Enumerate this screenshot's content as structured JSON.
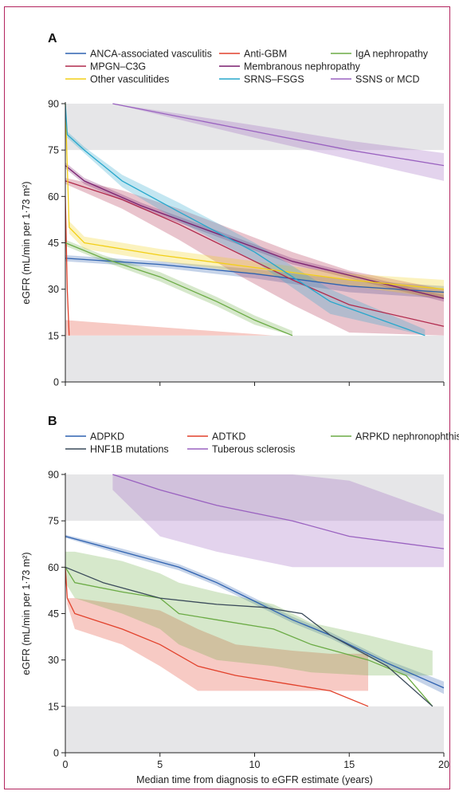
{
  "chart_data": [
    {
      "panel": "A",
      "type": "line",
      "ylabel": "eGFR (mL/min per 1·73 m²)",
      "xlim": [
        0,
        20
      ],
      "ylim": [
        0,
        90
      ],
      "xticks": [
        0,
        5,
        10,
        15,
        20
      ],
      "yticks": [
        0,
        15,
        30,
        45,
        60,
        75,
        90
      ],
      "shaded_bands": [
        [
          0,
          15
        ],
        [
          15,
          30
        ],
        [
          75,
          90
        ]
      ],
      "legend_rows": [
        [
          "ANCA-associated vasculitis",
          "Anti-GBM",
          "IgA nephropathy"
        ],
        [
          "MPGN–C3G",
          "Membranous nephropathy"
        ],
        [
          "Other vasculitides",
          "SRNS–FSGS",
          "SSNS or MCD"
        ]
      ],
      "series": [
        {
          "name": "ANCA-associated vasculitis",
          "color": "#2f62b0",
          "points": [
            [
              0,
              40
            ],
            [
              5,
              38
            ],
            [
              10,
              35
            ],
            [
              15,
              31
            ],
            [
              20,
              29
            ]
          ],
          "upper": [
            41,
            39,
            36.5,
            33,
            31
          ],
          "lower": [
            39,
            37,
            33.5,
            29,
            27
          ]
        },
        {
          "name": "Anti-GBM",
          "color": "#e2412b",
          "points": [
            [
              0,
              60
            ],
            [
              0.1,
              30
            ],
            [
              0.2,
              15
            ]
          ],
          "band_x": [
            0,
            11
          ],
          "upper": [
            20,
            15
          ],
          "lower": [
            15,
            15
          ]
        },
        {
          "name": "IgA nephropathy",
          "color": "#6bab45",
          "points": [
            [
              0,
              45
            ],
            [
              2,
              40
            ],
            [
              5,
              34
            ],
            [
              8,
              26
            ],
            [
              10,
              20
            ],
            [
              12,
              15
            ]
          ],
          "upper": [
            46,
            41,
            35.5,
            27.5,
            21.5,
            16.5
          ],
          "lower": [
            44,
            39,
            32.5,
            24.5,
            18.5,
            15
          ]
        },
        {
          "name": "MPGN–C3G",
          "color": "#b12a4d",
          "points": [
            [
              0,
              65
            ],
            [
              3,
              59
            ],
            [
              6,
              51
            ],
            [
              9,
              42
            ],
            [
              12,
              33
            ],
            [
              15,
              25
            ],
            [
              20,
              18
            ]
          ],
          "upper": [
            66,
            62,
            56,
            49,
            42,
            36,
            30
          ],
          "lower": [
            64,
            56,
            46,
            35,
            25,
            16,
            15
          ]
        },
        {
          "name": "Membranous nephropathy",
          "color": "#7a1f6f",
          "points": [
            [
              0,
              70
            ],
            [
              1,
              65
            ],
            [
              4,
              57
            ],
            [
              8,
              48
            ],
            [
              12,
              39
            ],
            [
              16,
              33
            ],
            [
              20,
              27
            ]
          ],
          "upper": [
            71,
            66,
            58,
            49,
            40,
            34,
            28
          ],
          "lower": [
            69,
            64,
            56,
            47,
            38,
            32,
            26
          ]
        },
        {
          "name": "Other vasculitides",
          "color": "#f2cf16",
          "points": [
            [
              0,
              90
            ],
            [
              0.2,
              50
            ],
            [
              1,
              45
            ],
            [
              5,
              41
            ],
            [
              10,
              37
            ],
            [
              15,
              33
            ],
            [
              20,
              30
            ]
          ],
          "upper": [
            90,
            52,
            47,
            43,
            39,
            35,
            33
          ],
          "lower": [
            90,
            48,
            43,
            39,
            35,
            31,
            27
          ]
        },
        {
          "name": "SRNS–FSGS",
          "color": "#26a7cc",
          "points": [
            [
              0,
              90
            ],
            [
              0.1,
              80
            ],
            [
              1,
              75
            ],
            [
              3,
              65
            ],
            [
              6,
              55
            ],
            [
              10,
              42
            ],
            [
              14,
              26
            ],
            [
              19,
              15
            ]
          ],
          "upper": [
            90,
            81,
            76,
            67,
            58,
            45,
            30,
            17
          ],
          "lower": [
            90,
            79,
            74,
            63,
            52,
            39,
            22,
            15
          ]
        },
        {
          "name": "SSNS or MCD",
          "color": "#9a62c0",
          "points": [
            [
              2.5,
              90
            ],
            [
              10,
              81
            ],
            [
              15,
              75
            ],
            [
              20,
              70
            ]
          ],
          "upper": [
            90,
            83,
            78,
            74
          ],
          "lower": [
            90,
            79,
            72,
            65
          ]
        }
      ]
    },
    {
      "panel": "B",
      "type": "line",
      "ylabel": "eGFR (mL/min per 1·73 m²)",
      "xlabel": "Median time from diagnosis to eGFR estimate (years)",
      "xlim": [
        0,
        20
      ],
      "ylim": [
        0,
        90
      ],
      "xticks": [
        0,
        5,
        10,
        15,
        20
      ],
      "yticks": [
        0,
        15,
        30,
        45,
        60,
        75,
        90
      ],
      "shaded_bands": [
        [
          0,
          15
        ],
        [
          15,
          30
        ],
        [
          75,
          90
        ]
      ],
      "legend_rows": [
        [
          "ADPKD",
          "ADTKD",
          "ARPKD nephronophthisis"
        ],
        [
          "HNF1B mutations",
          "Tuberous sclerosis"
        ]
      ],
      "series": [
        {
          "name": "ADPKD",
          "color": "#2f62b0",
          "points": [
            [
              0,
              70
            ],
            [
              3,
              65
            ],
            [
              6,
              60
            ],
            [
              8,
              55
            ],
            [
              10,
              49
            ],
            [
              12,
              43
            ],
            [
              14,
              38
            ],
            [
              17,
              29
            ],
            [
              20,
              21
            ]
          ],
          "upper": [
            70.5,
            66,
            61,
            56,
            50,
            44,
            39,
            30,
            23
          ],
          "lower": [
            69.5,
            64,
            59,
            54,
            48,
            42,
            37,
            28,
            19
          ]
        },
        {
          "name": "ADTKD",
          "color": "#e2412b",
          "points": [
            [
              0,
              60
            ],
            [
              0.1,
              50
            ],
            [
              0.5,
              45
            ],
            [
              3,
              40
            ],
            [
              5,
              35
            ],
            [
              7,
              28
            ],
            [
              9,
              25
            ],
            [
              12,
              22
            ],
            [
              14,
              20
            ],
            [
              16,
              15
            ]
          ],
          "upper": [
            60,
            50,
            50,
            48,
            46,
            40,
            35,
            33,
            32,
            32
          ],
          "lower": [
            60,
            48,
            40,
            35,
            28,
            20,
            20,
            20,
            20,
            20
          ]
        },
        {
          "name": "ARPKD nephronophthisis",
          "color": "#6bab45",
          "points": [
            [
              0,
              60
            ],
            [
              0.5,
              55
            ],
            [
              3,
              52
            ],
            [
              5,
              50
            ],
            [
              6,
              45
            ],
            [
              8,
              43
            ],
            [
              11,
              40
            ],
            [
              13,
              35
            ],
            [
              16,
              30
            ],
            [
              18,
              25
            ],
            [
              19.4,
              15
            ]
          ],
          "upper": [
            65,
            65,
            62,
            58,
            55,
            52,
            48,
            42,
            38,
            35,
            33
          ],
          "lower": [
            55,
            50,
            45,
            40,
            35,
            30,
            28,
            26,
            25,
            25,
            25
          ]
        },
        {
          "name": "HNF1B mutations",
          "color": "#3a4a5a",
          "points": [
            [
              0,
              60
            ],
            [
              2,
              55
            ],
            [
              5,
              50
            ],
            [
              8,
              48
            ],
            [
              10.5,
              47
            ],
            [
              12.5,
              45
            ],
            [
              14,
              38
            ],
            [
              17,
              28
            ],
            [
              19.4,
              15
            ]
          ],
          "upper": [],
          "lower": []
        },
        {
          "name": "Tuberous sclerosis",
          "color": "#9a62c0",
          "points": [
            [
              2.5,
              90
            ],
            [
              5,
              85
            ],
            [
              8,
              80
            ],
            [
              12,
              75
            ],
            [
              15,
              70
            ],
            [
              20,
              66
            ]
          ],
          "upper": [
            90,
            90,
            90,
            90,
            88,
            77
          ],
          "lower": [
            85,
            70,
            65,
            60,
            60,
            60
          ]
        }
      ]
    }
  ]
}
